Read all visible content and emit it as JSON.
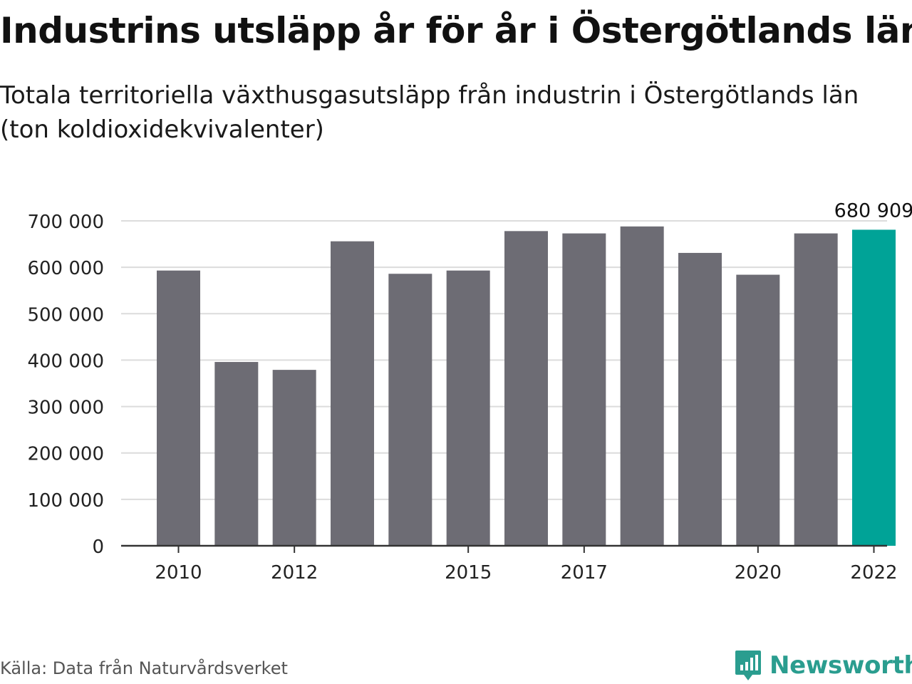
{
  "title": "Industrins utsläpp år för år i Östergötlands län",
  "subtitle": "Totala territoriella växthusgasutsläpp från industrin i Östergötlands län (ton koldioxidekvivalenter)",
  "source": "Källa: Data från Naturvårdsverket",
  "brand": {
    "name": "Newsworthy",
    "color": "#2a9d8f"
  },
  "colors": {
    "bar": "#6d6c74",
    "highlight": "#00a397",
    "grid": "#dcdcdc",
    "axis": "#333333"
  },
  "chart_data": {
    "type": "bar",
    "title": "Industrins utsläpp år för år i Östergötlands län",
    "xlabel": "",
    "ylabel": "ton koldioxidekvivalenter",
    "categories": [
      "2010",
      "2011",
      "2012",
      "2013",
      "2014",
      "2015",
      "2016",
      "2017",
      "2018",
      "2019",
      "2020",
      "2021",
      "2022"
    ],
    "values": [
      593000,
      396000,
      379000,
      656000,
      586000,
      593000,
      678000,
      673000,
      688000,
      631000,
      584000,
      673000,
      680909
    ],
    "ylim": [
      0,
      700000
    ],
    "yticks": [
      0,
      100000,
      200000,
      300000,
      400000,
      500000,
      600000,
      700000
    ],
    "ytick_labels": [
      "0",
      "100 000",
      "200 000",
      "300 000",
      "400 000",
      "500 000",
      "600 000",
      "700 000"
    ],
    "xtick_labels": [
      "2010",
      "2012",
      "2015",
      "2017",
      "2020",
      "2022"
    ],
    "highlight_index": 12,
    "data_labels": [
      {
        "index": 12,
        "text": "680 909"
      }
    ],
    "grid": true
  }
}
